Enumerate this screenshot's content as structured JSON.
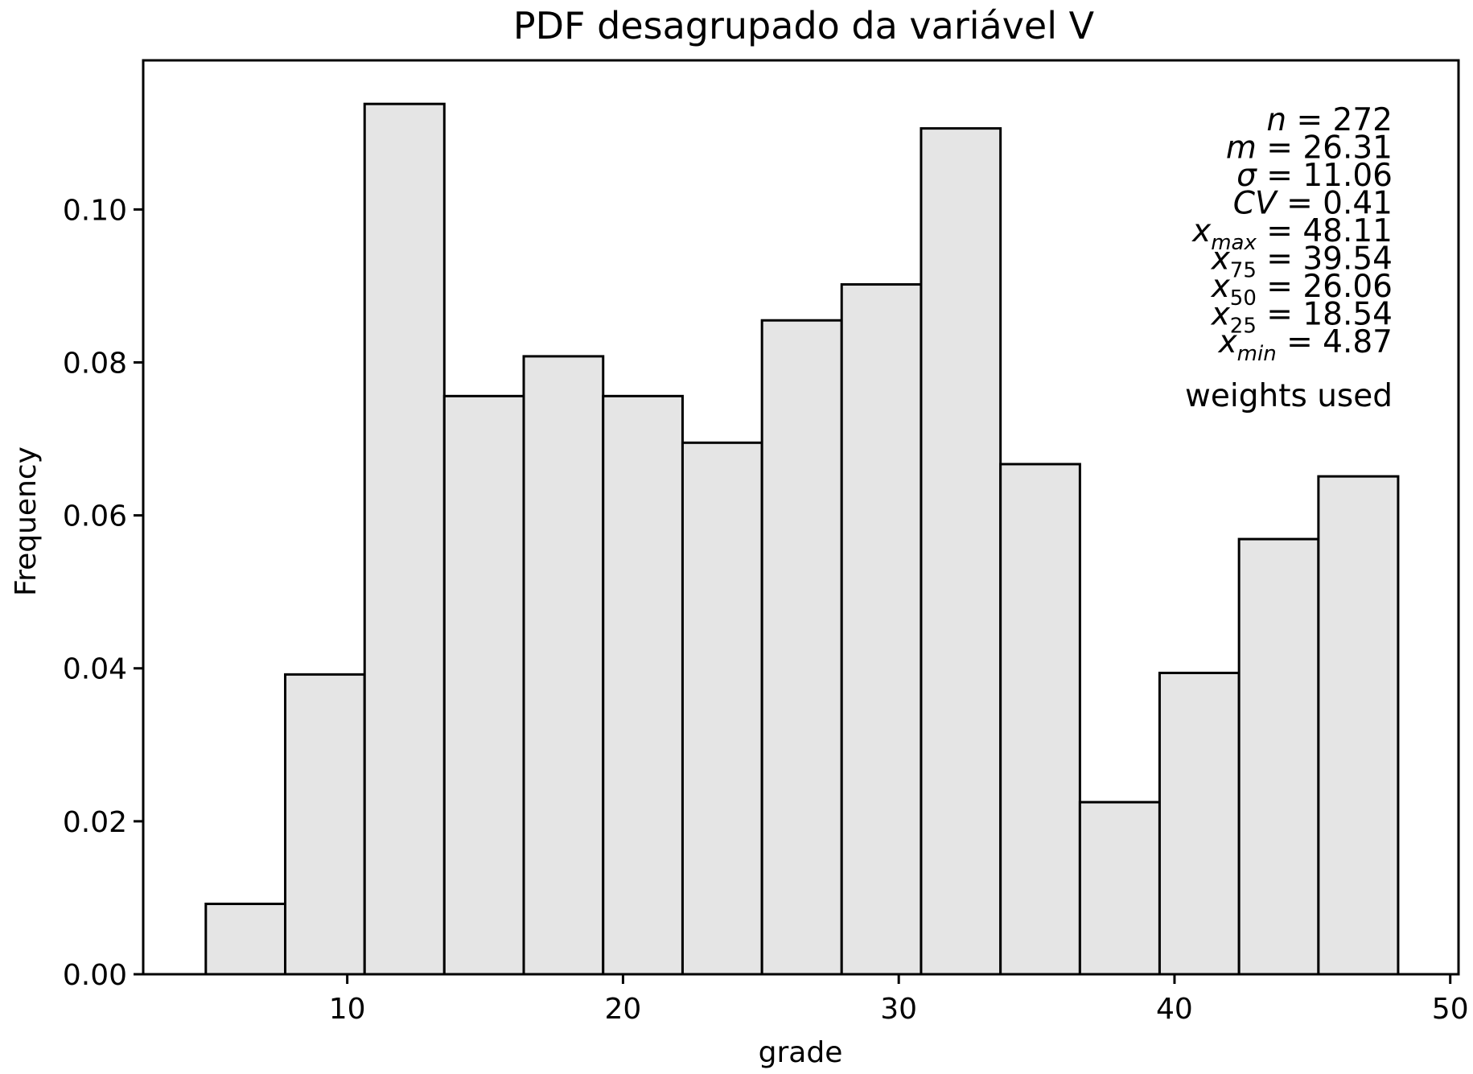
{
  "chart_data": {
    "type": "bar",
    "title": "PDF desagrupado da variável V",
    "xlabel": "grade",
    "ylabel": "Frequency",
    "xlim": [
      2.6,
      50.3
    ],
    "ylim": [
      0,
      0.1195
    ],
    "xticks": [
      10,
      20,
      30,
      40,
      50
    ],
    "xtick_labels": [
      "10",
      "20",
      "30",
      "40",
      "50"
    ],
    "yticks": [
      0.0,
      0.02,
      0.04,
      0.06,
      0.08,
      0.1
    ],
    "ytick_labels": [
      "0.00",
      "0.02",
      "0.04",
      "0.06",
      "0.08",
      "0.10"
    ],
    "bin_edges": [
      4.87,
      7.75,
      10.63,
      13.52,
      16.4,
      19.28,
      22.16,
      25.04,
      27.93,
      30.81,
      33.69,
      36.57,
      39.46,
      42.34,
      45.22,
      48.11
    ],
    "values": [
      0.0092,
      0.0392,
      0.1138,
      0.0756,
      0.0808,
      0.0756,
      0.0695,
      0.0855,
      0.0902,
      0.1106,
      0.0667,
      0.0225,
      0.0394,
      0.0569,
      0.0651
    ],
    "bar_fill": "#e5e5e5",
    "bar_edge": "#000000",
    "grid": false,
    "stats": [
      {
        "symbol": "n",
        "sub": "",
        "value": "272"
      },
      {
        "symbol": "m",
        "sub": "",
        "value": "26.31"
      },
      {
        "symbol": "σ",
        "sub": "",
        "value": "11.06"
      },
      {
        "symbol": "CV",
        "sub": "",
        "value": "0.41"
      },
      {
        "symbol": "x",
        "sub": "max",
        "value": "48.11"
      },
      {
        "symbol": "x",
        "sub": "75",
        "value": "39.54"
      },
      {
        "symbol": "x",
        "sub": "50",
        "value": "26.06"
      },
      {
        "symbol": "x",
        "sub": "25",
        "value": "18.54"
      },
      {
        "symbol": "x",
        "sub": "min",
        "value": "4.87"
      }
    ],
    "note": "weights used"
  }
}
